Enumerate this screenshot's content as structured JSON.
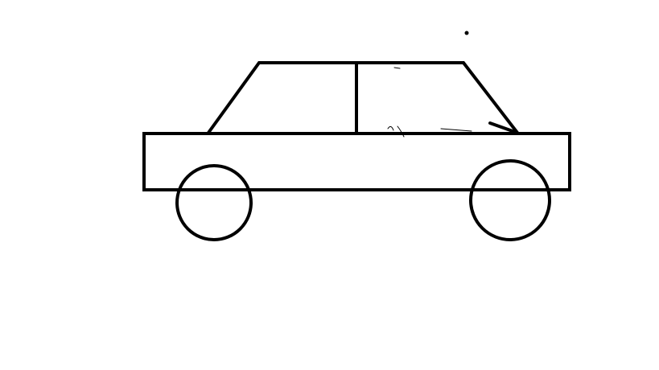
{
  "drawing": {
    "subject": "car",
    "stroke_color": "#000000",
    "background_color": "#ffffff"
  }
}
